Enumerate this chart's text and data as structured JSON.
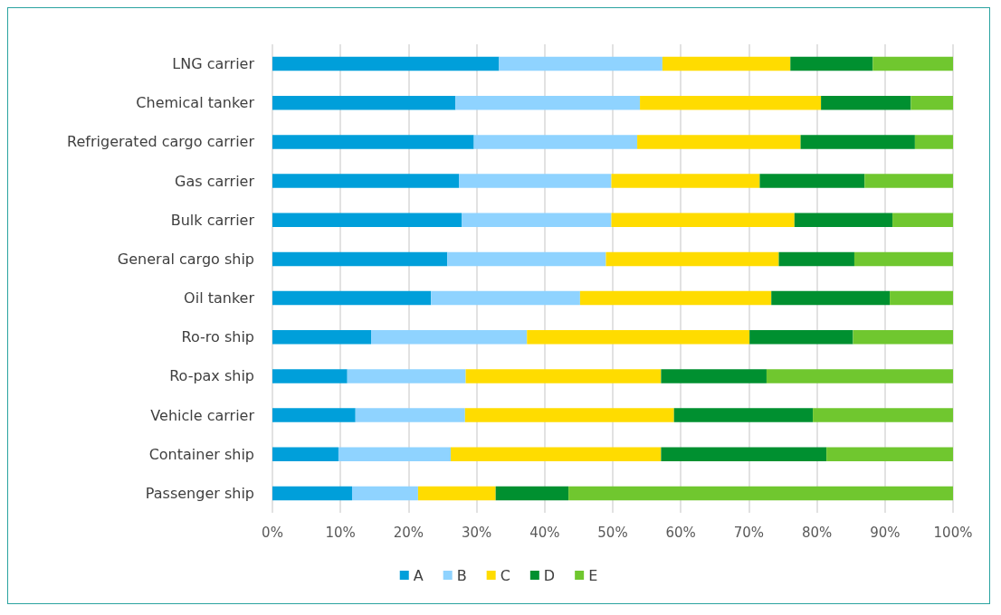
{
  "chart_data": {
    "type": "bar",
    "orientation": "horizontal",
    "stacked": true,
    "categories": [
      "LNG carrier",
      "Chemical tanker",
      "Refrigerated cargo carrier",
      "Gas carrier",
      "Bulk carrier",
      "General cargo ship",
      "Oil tanker",
      "Ro-ro ship",
      "Ro-pax ship",
      "Vehicle carrier",
      "Container ship",
      "Passenger ship"
    ],
    "series": [
      {
        "name": "A",
        "color": "#009fda",
        "values": [
          33.3,
          26.9,
          29.6,
          27.4,
          27.8,
          25.7,
          23.3,
          14.5,
          11.0,
          12.2,
          9.7,
          11.7
        ]
      },
      {
        "name": "B",
        "color": "#8fd3ff",
        "values": [
          24.0,
          27.1,
          24.0,
          22.4,
          22.0,
          23.3,
          21.9,
          22.9,
          17.4,
          16.1,
          16.5,
          9.7
        ]
      },
      {
        "name": "C",
        "color": "#ffdc00",
        "values": [
          18.8,
          26.6,
          24.0,
          21.8,
          26.9,
          25.4,
          28.1,
          32.7,
          28.7,
          30.7,
          30.9,
          11.4
        ]
      },
      {
        "name": "D",
        "color": "#009030",
        "values": [
          12.1,
          13.2,
          16.8,
          15.4,
          14.4,
          11.1,
          17.4,
          15.2,
          15.5,
          20.4,
          24.3,
          10.7
        ]
      },
      {
        "name": "E",
        "color": "#70c72f",
        "values": [
          11.8,
          6.2,
          5.6,
          13.0,
          8.9,
          14.5,
          9.3,
          14.7,
          27.4,
          20.6,
          18.6,
          56.5
        ]
      }
    ],
    "xlim": [
      0,
      100
    ],
    "xticks": [
      {
        "value": 0,
        "label": "0%"
      },
      {
        "value": 10,
        "label": "10%"
      },
      {
        "value": 20,
        "label": "20%"
      },
      {
        "value": 30,
        "label": "30%"
      },
      {
        "value": 40,
        "label": "40%"
      },
      {
        "value": 50,
        "label": "50%"
      },
      {
        "value": 60,
        "label": "60%"
      },
      {
        "value": 70,
        "label": "70%"
      },
      {
        "value": 80,
        "label": "80%"
      },
      {
        "value": 90,
        "label": "90%"
      },
      {
        "value": 100,
        "label": "100%"
      }
    ],
    "grid": "x",
    "legend": "bottom"
  }
}
